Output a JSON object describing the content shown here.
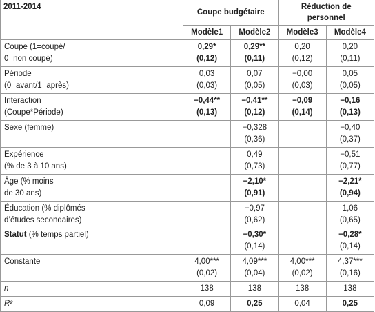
{
  "header": {
    "title": "2011-2014",
    "groups": [
      "Coupe budgétaire",
      "Réduction de personnel"
    ],
    "models": [
      "Modèle1",
      "Modèle2",
      "Modèle3",
      "Modèle4"
    ]
  },
  "rows": [
    {
      "label": [
        "Coupe (1=coupé/",
        "0=non coupé)"
      ],
      "coef": [
        "0,29*",
        "0,29**",
        "0,20",
        "0,20"
      ],
      "se": [
        "(0,12)",
        "(0,11)",
        "(0,12)",
        "(0,11)"
      ]
    },
    {
      "label": [
        "Période",
        "(0=avant/1=après)"
      ],
      "coef": [
        "0,03",
        "0,07",
        "−0,00",
        "0,05"
      ],
      "se": [
        "(0,03)",
        "(0,05)",
        "(0,03)",
        "(0,05)"
      ]
    },
    {
      "label": [
        "Interaction",
        "(Coupe*Période)"
      ],
      "coef": [
        "−0,44**",
        "−0,41**",
        "−0,09",
        "−0,16"
      ],
      "se": [
        "(0,13)",
        "(0,12)",
        "(0,14)",
        "(0,13)"
      ]
    },
    {
      "label": [
        "Sexe (femme)"
      ],
      "coef": [
        null,
        "−0,328",
        null,
        "−0,40"
      ],
      "se": [
        null,
        "(0,36)",
        null,
        "(0,37)"
      ]
    },
    {
      "label": [
        "Expérience",
        "(% de 3 à 10 ans)"
      ],
      "coef": [
        null,
        "0,49",
        null,
        "−0,51"
      ],
      "se": [
        null,
        "(0,73)",
        null,
        "(0,77)"
      ]
    },
    {
      "label": [
        "Âge (% moins",
        "de 30 ans)"
      ],
      "coef": [
        null,
        "−2,10*",
        null,
        "−2,21*"
      ],
      "se": [
        null,
        "(0,91)",
        null,
        "(0,94)"
      ]
    },
    {
      "label": [
        "Éducation (% diplômés",
        "d’études secondaires)"
      ],
      "coef": [
        null,
        "−0,97",
        null,
        "1,06"
      ],
      "se": [
        null,
        "(0,62)",
        null,
        "(0,65)"
      ]
    },
    {
      "label": [
        "Statut",
        "(% temps partiel)"
      ],
      "coef": [
        null,
        "−0,30*",
        null,
        "−0,28*"
      ],
      "se": [
        null,
        "(0,14)",
        null,
        "(0,14)"
      ]
    },
    {
      "label": [
        "Constante"
      ],
      "coef": [
        "4,00***",
        "4,09***",
        "4,00***",
        "4,37***"
      ],
      "se": [
        "(0,02)",
        "(0,04)",
        "(0,02)",
        "(0,16)"
      ]
    },
    {
      "label": [
        "n"
      ],
      "coef": [
        "138",
        "138",
        "138",
        "138"
      ]
    },
    {
      "label": [
        "R²"
      ],
      "coef": [
        "0,09",
        "0,25",
        "0,04",
        "0,25"
      ]
    }
  ]
}
